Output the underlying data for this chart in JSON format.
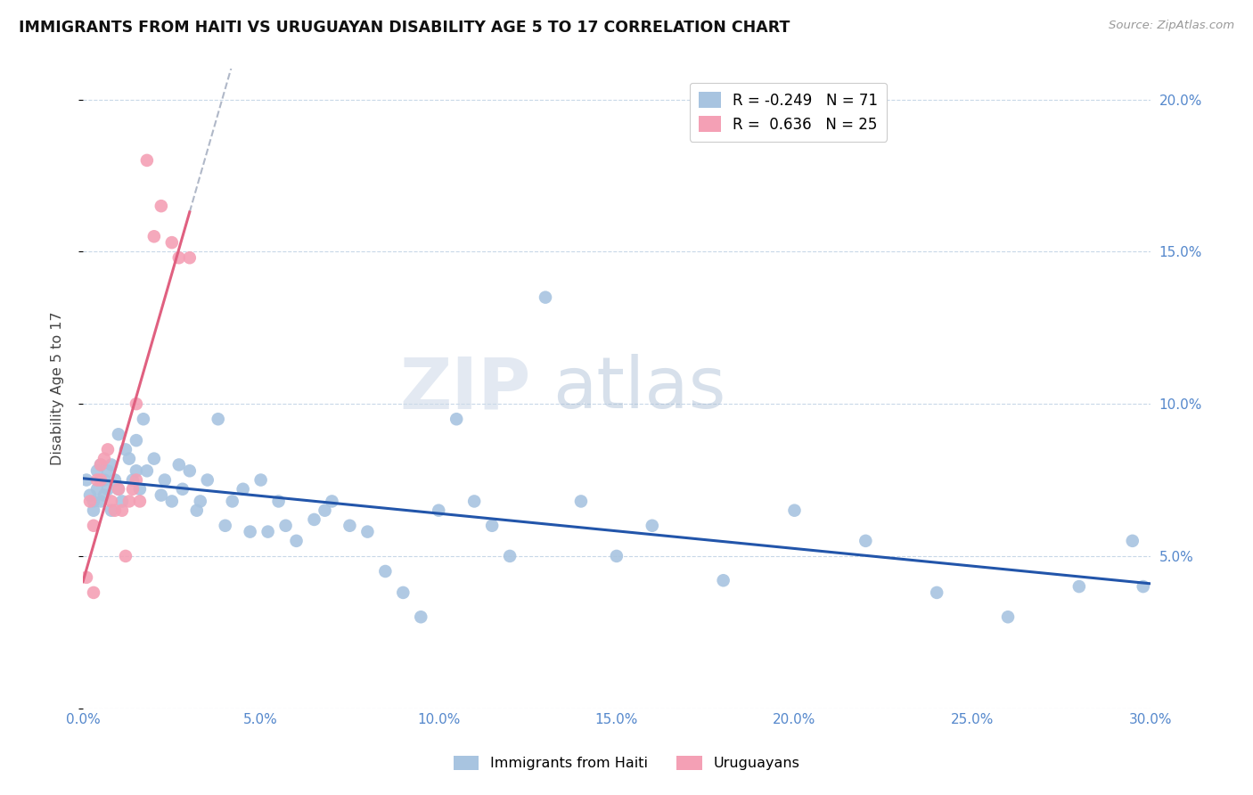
{
  "title": "IMMIGRANTS FROM HAITI VS URUGUAYAN DISABILITY AGE 5 TO 17 CORRELATION CHART",
  "source": "Source: ZipAtlas.com",
  "ylabel": "Disability Age 5 to 17",
  "xlim": [
    0.0,
    0.3
  ],
  "ylim": [
    0.0,
    0.21
  ],
  "x_ticks": [
    0.0,
    0.05,
    0.1,
    0.15,
    0.2,
    0.25,
    0.3
  ],
  "x_tick_labels": [
    "0.0%",
    "5.0%",
    "10.0%",
    "15.0%",
    "20.0%",
    "25.0%",
    "30.0%"
  ],
  "y_ticks": [
    0.0,
    0.05,
    0.1,
    0.15,
    0.2
  ],
  "y_tick_labels": [
    "",
    "5.0%",
    "10.0%",
    "15.0%",
    "20.0%"
  ],
  "haiti_color": "#a8c4e0",
  "uruguay_color": "#f4a0b5",
  "haiti_line_color": "#2255aa",
  "uruguay_line_color": "#e06080",
  "r_haiti": -0.249,
  "n_haiti": 71,
  "r_uruguay": 0.636,
  "n_uruguay": 25,
  "legend_label_haiti": "Immigrants from Haiti",
  "legend_label_uruguay": "Uruguayans",
  "watermark_zip": "ZIP",
  "watermark_atlas": "atlas",
  "haiti_x": [
    0.001,
    0.002,
    0.003,
    0.003,
    0.004,
    0.004,
    0.005,
    0.005,
    0.006,
    0.006,
    0.007,
    0.007,
    0.008,
    0.008,
    0.009,
    0.01,
    0.01,
    0.011,
    0.012,
    0.013,
    0.014,
    0.015,
    0.015,
    0.016,
    0.017,
    0.018,
    0.02,
    0.022,
    0.023,
    0.025,
    0.027,
    0.028,
    0.03,
    0.032,
    0.033,
    0.035,
    0.038,
    0.04,
    0.042,
    0.045,
    0.047,
    0.05,
    0.052,
    0.055,
    0.057,
    0.06,
    0.065,
    0.068,
    0.07,
    0.075,
    0.08,
    0.085,
    0.09,
    0.095,
    0.1,
    0.105,
    0.11,
    0.115,
    0.12,
    0.13,
    0.14,
    0.15,
    0.16,
    0.18,
    0.2,
    0.22,
    0.24,
    0.26,
    0.28,
    0.295,
    0.298
  ],
  "haiti_y": [
    0.075,
    0.07,
    0.068,
    0.065,
    0.078,
    0.072,
    0.08,
    0.068,
    0.075,
    0.07,
    0.072,
    0.078,
    0.08,
    0.065,
    0.075,
    0.09,
    0.072,
    0.068,
    0.085,
    0.082,
    0.075,
    0.078,
    0.088,
    0.072,
    0.095,
    0.078,
    0.082,
    0.07,
    0.075,
    0.068,
    0.08,
    0.072,
    0.078,
    0.065,
    0.068,
    0.075,
    0.095,
    0.06,
    0.068,
    0.072,
    0.058,
    0.075,
    0.058,
    0.068,
    0.06,
    0.055,
    0.062,
    0.065,
    0.068,
    0.06,
    0.058,
    0.045,
    0.038,
    0.03,
    0.065,
    0.095,
    0.068,
    0.06,
    0.05,
    0.135,
    0.068,
    0.05,
    0.06,
    0.042,
    0.065,
    0.055,
    0.038,
    0.03,
    0.04,
    0.055,
    0.04
  ],
  "uruguay_x": [
    0.001,
    0.002,
    0.003,
    0.003,
    0.004,
    0.005,
    0.005,
    0.006,
    0.007,
    0.008,
    0.009,
    0.01,
    0.011,
    0.012,
    0.013,
    0.014,
    0.015,
    0.015,
    0.016,
    0.018,
    0.02,
    0.022,
    0.025,
    0.027,
    0.03
  ],
  "uruguay_y": [
    0.043,
    0.068,
    0.038,
    0.06,
    0.075,
    0.075,
    0.08,
    0.082,
    0.085,
    0.068,
    0.065,
    0.072,
    0.065,
    0.05,
    0.068,
    0.072,
    0.1,
    0.075,
    0.068,
    0.18,
    0.155,
    0.165,
    0.153,
    0.148,
    0.148
  ]
}
